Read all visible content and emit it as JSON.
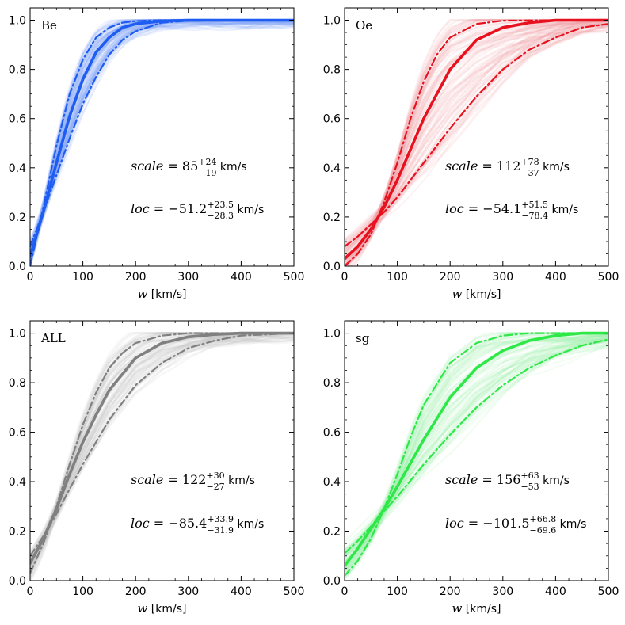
{
  "chart_data": [
    {
      "type": "line",
      "panel_label": "Be",
      "color": "#1f5cf2",
      "band_color": "#7fa6f6",
      "xlabel_var": "w",
      "xlabel_unit": "[km/s]",
      "xlim": [
        0,
        500
      ],
      "ylim": [
        0,
        1.05
      ],
      "xticks": [
        "0",
        "100",
        "200",
        "300",
        "400",
        "500"
      ],
      "yticks": [
        "0.0",
        "0.2",
        "0.4",
        "0.6",
        "0.8",
        "1.0"
      ],
      "series": [
        {
          "style": "solid",
          "x": [
            0,
            25,
            50,
            75,
            100,
            125,
            150,
            175,
            200,
            250,
            300,
            400,
            500
          ],
          "y": [
            0.04,
            0.22,
            0.42,
            0.61,
            0.76,
            0.87,
            0.93,
            0.97,
            0.985,
            0.997,
            1.0,
            1.0,
            1.0
          ]
        },
        {
          "style": "dashdot",
          "x": [
            0,
            25,
            50,
            75,
            100,
            125,
            150,
            175,
            200,
            250,
            300,
            400,
            500
          ],
          "y": [
            0.0,
            0.24,
            0.49,
            0.7,
            0.84,
            0.93,
            0.97,
            0.99,
            0.997,
            1.0,
            1.0,
            1.0,
            1.0
          ]
        },
        {
          "style": "dashdot",
          "x": [
            0,
            25,
            50,
            75,
            100,
            125,
            150,
            175,
            200,
            250,
            300,
            400,
            500
          ],
          "y": [
            0.08,
            0.22,
            0.37,
            0.52,
            0.66,
            0.77,
            0.86,
            0.92,
            0.955,
            0.99,
            0.998,
            1.0,
            1.0
          ]
        }
      ],
      "annotations": {
        "scale_var": "scale",
        "scale_eq": "= 85",
        "scale_sup": "+24",
        "scale_sub": "−19",
        "scale_unit": "km/s",
        "loc_var": "loc",
        "loc_eq": "= −51.2",
        "loc_sup": "+23.5",
        "loc_sub": "−28.3",
        "loc_unit": "km/s"
      }
    },
    {
      "type": "line",
      "panel_label": "Oe",
      "color": "#e8121f",
      "band_color": "#f49aa0",
      "xlabel_var": "w",
      "xlabel_unit": "[km/s]",
      "xlim": [
        0,
        500
      ],
      "ylim": [
        0,
        1.05
      ],
      "xticks": [
        "0",
        "100",
        "200",
        "300",
        "400",
        "500"
      ],
      "yticks": [
        "0.0",
        "0.2",
        "0.4",
        "0.6",
        "0.8",
        "1.0"
      ],
      "series": [
        {
          "style": "solid",
          "x": [
            0,
            25,
            50,
            75,
            100,
            150,
            200,
            250,
            300,
            350,
            400,
            500
          ],
          "y": [
            0.03,
            0.08,
            0.15,
            0.24,
            0.35,
            0.6,
            0.8,
            0.92,
            0.97,
            0.99,
            1.0,
            1.0
          ]
        },
        {
          "style": "dashdot",
          "x": [
            0,
            25,
            50,
            75,
            100,
            125,
            150,
            175,
            200,
            250,
            300,
            400,
            500
          ],
          "y": [
            0.0,
            0.05,
            0.13,
            0.26,
            0.42,
            0.6,
            0.75,
            0.86,
            0.93,
            0.985,
            0.998,
            1.0,
            1.0
          ]
        },
        {
          "style": "dashdot",
          "x": [
            0,
            25,
            50,
            75,
            100,
            150,
            200,
            250,
            300,
            350,
            400,
            450,
            500
          ],
          "y": [
            0.08,
            0.12,
            0.17,
            0.22,
            0.28,
            0.42,
            0.56,
            0.69,
            0.8,
            0.88,
            0.93,
            0.97,
            0.985
          ]
        }
      ],
      "annotations": {
        "scale_var": "scale",
        "scale_eq": "= 112",
        "scale_sup": "+78",
        "scale_sub": "−37",
        "scale_unit": "km/s",
        "loc_var": "loc",
        "loc_eq": "= −54.1",
        "loc_sup": "+51.5",
        "loc_sub": "−78.4",
        "loc_unit": "km/s"
      }
    },
    {
      "type": "line",
      "panel_label": "ALL",
      "color": "#808080",
      "band_color": "#c8c8c8",
      "xlabel_var": "w",
      "xlabel_unit": "[km/s]",
      "xlim": [
        0,
        500
      ],
      "ylim": [
        0,
        1.05
      ],
      "xticks": [
        "0",
        "100",
        "200",
        "300",
        "400",
        "500"
      ],
      "yticks": [
        "0.0",
        "0.2",
        "0.4",
        "0.6",
        "0.8",
        "1.0"
      ],
      "series": [
        {
          "style": "solid",
          "x": [
            0,
            25,
            50,
            75,
            100,
            125,
            150,
            200,
            250,
            300,
            350,
            400,
            500
          ],
          "y": [
            0.07,
            0.17,
            0.29,
            0.43,
            0.56,
            0.67,
            0.77,
            0.9,
            0.96,
            0.985,
            0.995,
            1.0,
            1.0
          ]
        },
        {
          "style": "dashdot",
          "x": [
            0,
            25,
            50,
            75,
            100,
            125,
            150,
            175,
            200,
            250,
            300,
            400,
            500
          ],
          "y": [
            0.03,
            0.15,
            0.3,
            0.47,
            0.63,
            0.76,
            0.86,
            0.92,
            0.96,
            0.99,
            1.0,
            1.0,
            1.0
          ]
        },
        {
          "style": "dashdot",
          "x": [
            0,
            25,
            50,
            75,
            100,
            150,
            200,
            250,
            300,
            350,
            400,
            500
          ],
          "y": [
            0.1,
            0.18,
            0.27,
            0.37,
            0.47,
            0.65,
            0.79,
            0.88,
            0.94,
            0.97,
            0.99,
            1.0
          ]
        }
      ],
      "annotations": {
        "scale_var": "scale",
        "scale_eq": "= 122",
        "scale_sup": "+30",
        "scale_sub": "−27",
        "scale_unit": "km/s",
        "loc_var": "loc",
        "loc_eq": "= −85.4",
        "loc_sup": "+33.9",
        "loc_sub": "−31.9",
        "loc_unit": "km/s"
      }
    },
    {
      "type": "line",
      "panel_label": "sg",
      "color": "#2ee848",
      "band_color": "#9df2aa",
      "xlabel_var": "w",
      "xlabel_unit": "[km/s]",
      "xlim": [
        0,
        500
      ],
      "ylim": [
        0,
        1.05
      ],
      "xticks": [
        "0",
        "100",
        "200",
        "300",
        "400",
        "500"
      ],
      "yticks": [
        "0.0",
        "0.2",
        "0.4",
        "0.6",
        "0.8",
        "1.0"
      ],
      "series": [
        {
          "style": "solid",
          "x": [
            0,
            25,
            50,
            75,
            100,
            150,
            200,
            250,
            300,
            350,
            400,
            450,
            500
          ],
          "y": [
            0.06,
            0.13,
            0.21,
            0.29,
            0.38,
            0.57,
            0.74,
            0.86,
            0.93,
            0.97,
            0.99,
            1.0,
            1.0
          ]
        },
        {
          "style": "dashdot",
          "x": [
            0,
            25,
            50,
            75,
            100,
            125,
            150,
            200,
            250,
            300,
            350,
            400,
            500
          ],
          "y": [
            0.02,
            0.08,
            0.17,
            0.29,
            0.43,
            0.58,
            0.71,
            0.88,
            0.96,
            0.99,
            1.0,
            1.0,
            1.0
          ]
        },
        {
          "style": "dashdot",
          "x": [
            0,
            25,
            50,
            75,
            100,
            150,
            200,
            250,
            300,
            350,
            400,
            450,
            500
          ],
          "y": [
            0.11,
            0.16,
            0.22,
            0.28,
            0.34,
            0.47,
            0.59,
            0.7,
            0.79,
            0.86,
            0.91,
            0.95,
            0.975
          ]
        }
      ],
      "annotations": {
        "scale_var": "scale",
        "scale_eq": "= 156",
        "scale_sup": "+63",
        "scale_sub": "−53",
        "scale_unit": "km/s",
        "loc_var": "loc",
        "loc_eq": "= −101.5",
        "loc_sup": "+66.8",
        "loc_sub": "−69.6",
        "loc_unit": "km/s"
      }
    }
  ]
}
